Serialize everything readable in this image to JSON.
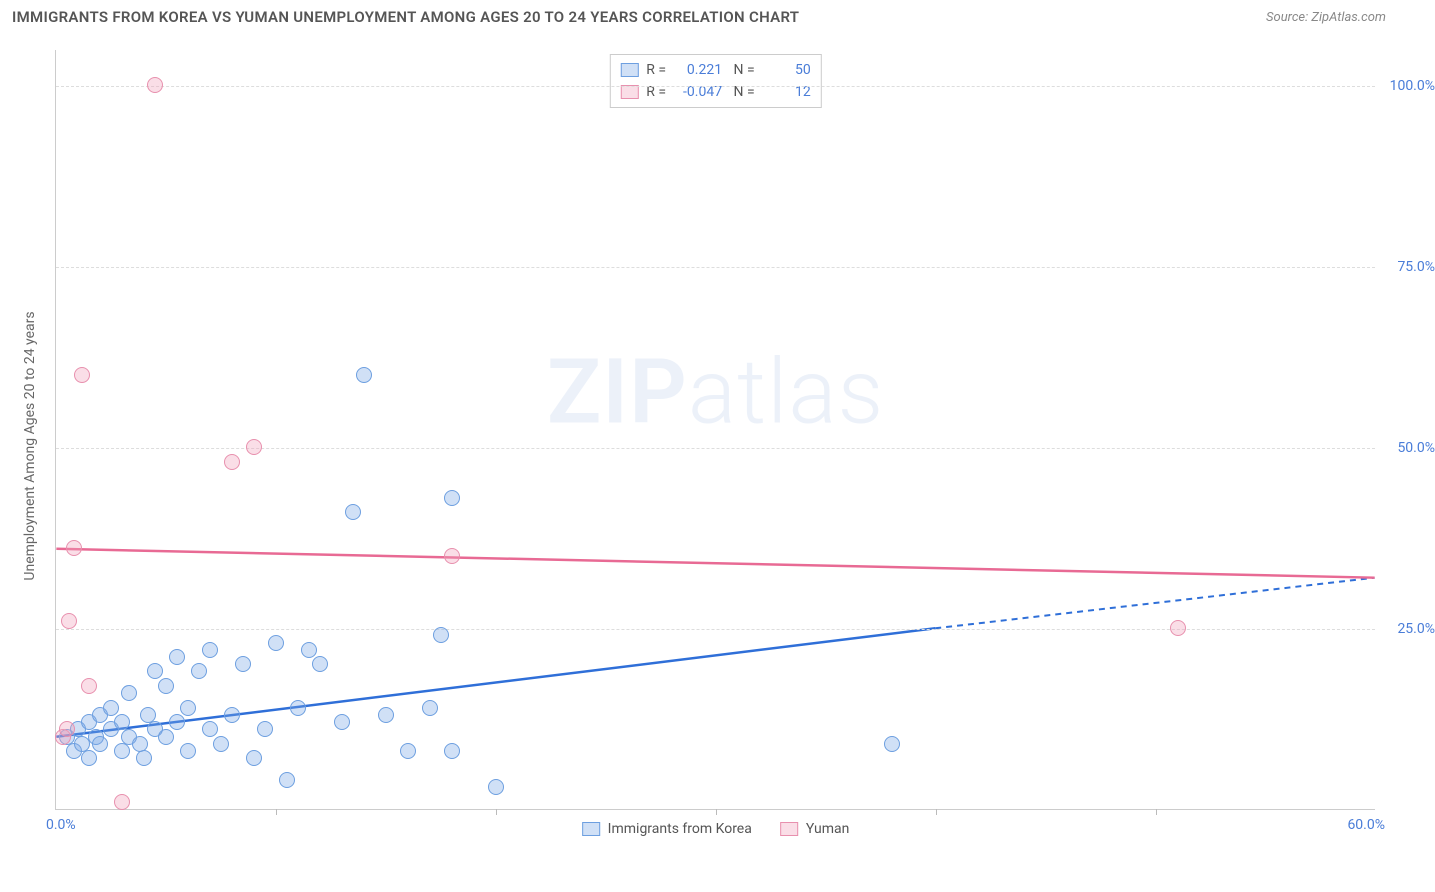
{
  "title": "IMMIGRANTS FROM KOREA VS YUMAN UNEMPLOYMENT AMONG AGES 20 TO 24 YEARS CORRELATION CHART",
  "source": "Source: ZipAtlas.com",
  "watermark_a": "ZIP",
  "watermark_b": "atlas",
  "chart": {
    "type": "scatter",
    "xlim": [
      0,
      60
    ],
    "ylim": [
      0,
      105
    ],
    "x_origin_label": "0.0%",
    "x_max_label": "60.0%",
    "y_ticks": [
      {
        "v": 25,
        "label": "25.0%"
      },
      {
        "v": 50,
        "label": "50.0%"
      },
      {
        "v": 75,
        "label": "75.0%"
      },
      {
        "v": 100,
        "label": "100.0%"
      }
    ],
    "x_tick_step": 10,
    "y_axis_label": "Unemployment Among Ages 20 to 24 years",
    "grid_color": "#dddddd",
    "background": "#ffffff",
    "point_radius": 8,
    "series": [
      {
        "name": "Immigrants from Korea",
        "color_fill": "rgba(120,165,230,0.35)",
        "color_stroke": "#6d9fe0",
        "r_label": "R =",
        "r_value": "0.221",
        "n_label": "N =",
        "n_value": "50",
        "trend": {
          "x1": 0,
          "y1": 10,
          "x2": 40,
          "y2": 25,
          "ext_x2": 60,
          "ext_y2": 32,
          "color": "#2f6fd8"
        },
        "points": [
          {
            "x": 0.5,
            "y": 10
          },
          {
            "x": 0.8,
            "y": 8
          },
          {
            "x": 1,
            "y": 11
          },
          {
            "x": 1.2,
            "y": 9
          },
          {
            "x": 1.5,
            "y": 7
          },
          {
            "x": 1.5,
            "y": 12
          },
          {
            "x": 1.8,
            "y": 10
          },
          {
            "x": 2,
            "y": 13
          },
          {
            "x": 2,
            "y": 9
          },
          {
            "x": 2.5,
            "y": 11
          },
          {
            "x": 2.5,
            "y": 14
          },
          {
            "x": 3,
            "y": 8
          },
          {
            "x": 3,
            "y": 12
          },
          {
            "x": 3.3,
            "y": 10
          },
          {
            "x": 3.3,
            "y": 16
          },
          {
            "x": 3.8,
            "y": 9
          },
          {
            "x": 4,
            "y": 7
          },
          {
            "x": 4.2,
            "y": 13
          },
          {
            "x": 4.5,
            "y": 11
          },
          {
            "x": 4.5,
            "y": 19
          },
          {
            "x": 5,
            "y": 10
          },
          {
            "x": 5,
            "y": 17
          },
          {
            "x": 5.5,
            "y": 12
          },
          {
            "x": 5.5,
            "y": 21
          },
          {
            "x": 6,
            "y": 8
          },
          {
            "x": 6,
            "y": 14
          },
          {
            "x": 6.5,
            "y": 19
          },
          {
            "x": 7,
            "y": 11
          },
          {
            "x": 7,
            "y": 22
          },
          {
            "x": 7.5,
            "y": 9
          },
          {
            "x": 8,
            "y": 13
          },
          {
            "x": 8.5,
            "y": 20
          },
          {
            "x": 9,
            "y": 7
          },
          {
            "x": 9.5,
            "y": 11
          },
          {
            "x": 10,
            "y": 23
          },
          {
            "x": 10.5,
            "y": 4
          },
          {
            "x": 11,
            "y": 14
          },
          {
            "x": 11.5,
            "y": 22
          },
          {
            "x": 12,
            "y": 20
          },
          {
            "x": 13,
            "y": 12
          },
          {
            "x": 13.5,
            "y": 41
          },
          {
            "x": 14,
            "y": 60
          },
          {
            "x": 15,
            "y": 13
          },
          {
            "x": 16,
            "y": 8
          },
          {
            "x": 17,
            "y": 14
          },
          {
            "x": 17.5,
            "y": 24
          },
          {
            "x": 18,
            "y": 8
          },
          {
            "x": 18,
            "y": 43
          },
          {
            "x": 20,
            "y": 3
          },
          {
            "x": 38,
            "y": 9
          }
        ]
      },
      {
        "name": "Yuman",
        "color_fill": "rgba(240,160,185,0.35)",
        "color_stroke": "#e890ae",
        "r_label": "R =",
        "r_value": "-0.047",
        "n_label": "N =",
        "n_value": "12",
        "trend": {
          "x1": 0,
          "y1": 36,
          "x2": 60,
          "y2": 32,
          "color": "#e86a94"
        },
        "points": [
          {
            "x": 0.3,
            "y": 10
          },
          {
            "x": 0.5,
            "y": 11
          },
          {
            "x": 0.6,
            "y": 26
          },
          {
            "x": 0.8,
            "y": 36
          },
          {
            "x": 1.2,
            "y": 60
          },
          {
            "x": 1.5,
            "y": 17
          },
          {
            "x": 3,
            "y": 1
          },
          {
            "x": 4.5,
            "y": 100
          },
          {
            "x": 8,
            "y": 48
          },
          {
            "x": 9,
            "y": 50
          },
          {
            "x": 18,
            "y": 35
          },
          {
            "x": 51,
            "y": 25
          }
        ]
      }
    ]
  }
}
